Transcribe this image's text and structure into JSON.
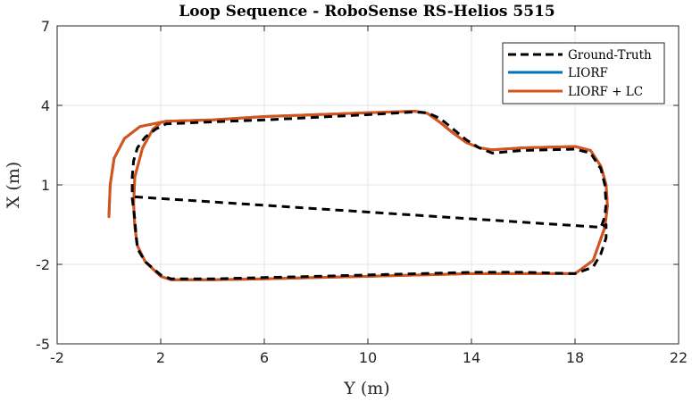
{
  "chart_data": {
    "type": "line",
    "title": "Loop Sequence - RoboSense RS-Helios 5515",
    "xlabel": "Y (m)",
    "ylabel": "X (m)",
    "xlim": [
      -2,
      22
    ],
    "ylim": [
      -5,
      7
    ],
    "xticks": [
      -2,
      2,
      6,
      10,
      14,
      18,
      22
    ],
    "yticks": [
      -5,
      -2,
      1,
      4,
      7
    ],
    "grid": true,
    "legend": {
      "position": "top-right"
    },
    "colors": {
      "gt": "#000000",
      "liorf": "#0072BD",
      "liorf_lc": "#D95319",
      "grid": "#e6e6e6",
      "axis": "#262626"
    },
    "series": [
      {
        "name": "Ground-Truth",
        "style": "dashed",
        "x": [
          1.0,
          19.0,
          19.15,
          19.2,
          19.15,
          19.0,
          18.6,
          18.0,
          16.0,
          14.8,
          14.3,
          13.8,
          13.3,
          12.8,
          12.3,
          11.8,
          10.0,
          6.0,
          4.0,
          2.2,
          1.8,
          1.4,
          1.1,
          0.95,
          0.9,
          0.9,
          1.0,
          1.05,
          1.1,
          1.4,
          2.0,
          2.4,
          4.0,
          6.0,
          8.0,
          10.0,
          12.0,
          14.0,
          16.0,
          18.0,
          18.7,
          19.0,
          19.2,
          19.2,
          19.0
        ],
        "y": [
          0.55,
          -0.6,
          -0.2,
          0.3,
          1.0,
          1.6,
          2.2,
          2.35,
          2.3,
          2.2,
          2.4,
          2.7,
          3.1,
          3.5,
          3.72,
          3.75,
          3.65,
          3.45,
          3.38,
          3.3,
          3.1,
          2.8,
          2.4,
          1.9,
          1.3,
          0.5,
          -0.3,
          -0.9,
          -1.4,
          -1.9,
          -2.4,
          -2.55,
          -2.55,
          -2.5,
          -2.45,
          -2.4,
          -2.35,
          -2.3,
          -2.3,
          -2.35,
          -2.1,
          -1.6,
          -1.0,
          -0.5,
          -0.6
        ]
      },
      {
        "name": "LIORF",
        "style": "solid",
        "x": [
          0.0,
          0.05,
          0.2,
          0.6,
          1.2,
          2.2,
          4.0,
          6.0,
          8.0,
          10.0,
          11.8,
          12.3,
          12.8,
          13.3,
          13.8,
          14.3,
          14.8,
          16.0,
          18.0,
          18.6,
          19.0,
          19.2,
          19.25,
          19.15,
          18.7,
          18.0,
          16.0,
          14.0,
          12.0,
          10.0,
          8.0,
          6.0,
          4.0,
          2.4,
          2.0,
          1.4,
          1.1,
          1.0,
          0.95,
          1.0,
          1.3,
          1.7,
          2.0
        ],
        "y": [
          -0.2,
          1.0,
          2.0,
          2.75,
          3.2,
          3.4,
          3.45,
          3.58,
          3.65,
          3.72,
          3.78,
          3.7,
          3.35,
          2.95,
          2.6,
          2.4,
          2.32,
          2.4,
          2.45,
          2.3,
          1.7,
          1.0,
          0.2,
          -0.6,
          -1.85,
          -2.35,
          -2.35,
          -2.35,
          -2.4,
          -2.45,
          -2.5,
          -2.55,
          -2.58,
          -2.58,
          -2.45,
          -1.9,
          -1.3,
          -0.6,
          0.3,
          1.3,
          2.4,
          3.1,
          3.35
        ]
      },
      {
        "name": "LIORF + LC",
        "style": "solid",
        "x": [
          0.0,
          0.05,
          0.2,
          0.6,
          1.2,
          2.2,
          4.0,
          6.0,
          8.0,
          10.0,
          11.8,
          12.3,
          12.8,
          13.3,
          13.8,
          14.3,
          14.8,
          16.0,
          18.0,
          18.6,
          19.0,
          19.2,
          19.25,
          19.15,
          18.7,
          18.0,
          16.0,
          14.0,
          12.0,
          10.0,
          8.0,
          6.0,
          4.0,
          2.4,
          2.0,
          1.4,
          1.1,
          1.0,
          0.95,
          1.0,
          1.3,
          1.7,
          2.0
        ],
        "y": [
          -0.2,
          1.0,
          2.0,
          2.75,
          3.2,
          3.4,
          3.45,
          3.58,
          3.65,
          3.72,
          3.78,
          3.7,
          3.35,
          2.95,
          2.6,
          2.4,
          2.32,
          2.4,
          2.45,
          2.3,
          1.7,
          1.0,
          0.2,
          -0.6,
          -1.85,
          -2.35,
          -2.35,
          -2.35,
          -2.4,
          -2.45,
          -2.5,
          -2.55,
          -2.58,
          -2.58,
          -2.45,
          -1.9,
          -1.3,
          -0.6,
          0.3,
          1.3,
          2.4,
          3.1,
          3.35
        ]
      }
    ]
  }
}
